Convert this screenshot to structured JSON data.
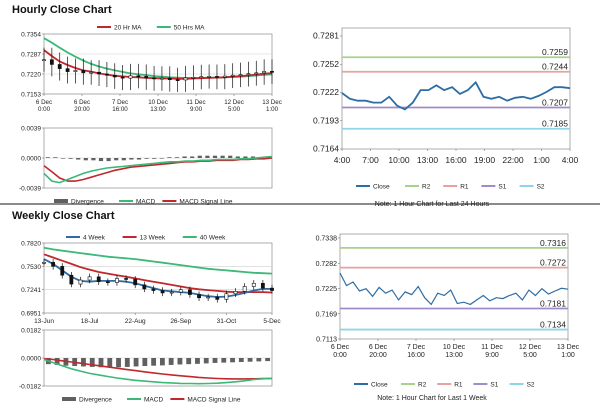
{
  "sections": {
    "hourly_title": "Hourly Close Chart",
    "weekly_title": "Weekly Close Chart"
  },
  "colors": {
    "close": "#2e6da4",
    "ma_red": "#c0282d",
    "ma_green": "#3cb878",
    "r2": "#a9d18e",
    "r1": "#e8a0a0",
    "s1": "#a08cc8",
    "s2": "#8fd4e8",
    "divergence": "#606060",
    "candle": "#111111"
  },
  "chart_data": [
    {
      "id": "hourly_price",
      "type": "line",
      "yticks": [
        "0.7354",
        "0.7287",
        "0.7220",
        "0.7153"
      ],
      "ylim": [
        0.7153,
        0.7354
      ],
      "xticks": [
        "6 Dec\n0:00",
        "6 Dec\n20:00",
        "7 Dec\n16:00",
        "10 Dec\n13:00",
        "11 Dec\n9:00",
        "12 Dec\n5:00",
        "13 Dec\n1:00"
      ],
      "legend": [
        "20 Hr MA",
        "50 Hrs MA"
      ],
      "series": [
        {
          "name": "Close",
          "values": [
            0.7268,
            0.7252,
            0.7238,
            0.7228,
            0.7232,
            0.7224,
            0.7226,
            0.722,
            0.7216,
            0.721,
            0.7206,
            0.7214,
            0.7212,
            0.7207,
            0.7204,
            0.7206,
            0.7201,
            0.72,
            0.7207,
            0.7209,
            0.7211,
            0.7212,
            0.7209,
            0.7213,
            0.7216,
            0.7218,
            0.7221,
            0.7224,
            0.7229,
            0.7227
          ]
        },
        {
          "name": "20 Hr MA",
          "values": [
            0.73,
            0.728,
            0.7262,
            0.725,
            0.724,
            0.7232,
            0.7228,
            0.7222,
            0.7218,
            0.7214,
            0.7212,
            0.721,
            0.7209,
            0.7207,
            0.7206,
            0.7205,
            0.7205,
            0.7204,
            0.7204,
            0.7205,
            0.7206,
            0.7207,
            0.7208,
            0.7209,
            0.7211,
            0.7213,
            0.7215,
            0.7218,
            0.7221,
            0.7223
          ]
        },
        {
          "name": "50 Hrs MA",
          "values": [
            0.734,
            0.7325,
            0.7308,
            0.7292,
            0.7278,
            0.7265,
            0.7254,
            0.7245,
            0.7238,
            0.7232,
            0.7227,
            0.7222,
            0.7219,
            0.7216,
            0.7213,
            0.7211,
            0.7209,
            0.7208,
            0.7207,
            0.7207,
            0.7207,
            0.7208,
            0.7208,
            0.7209,
            0.721,
            0.7211,
            0.7213,
            0.7215,
            0.7217,
            0.7219
          ]
        }
      ]
    },
    {
      "id": "hourly_macd",
      "type": "line",
      "yticks": [
        "0.0039",
        "0.0000",
        "-0.0039"
      ],
      "ylim": [
        -0.0039,
        0.0039
      ],
      "legend": [
        "Divergence",
        "MACD",
        "MACD Signal Line"
      ],
      "series": [
        {
          "name": "Divergence",
          "values": [
            0.0001,
            0.0001,
            0.0,
            -0.0001,
            -0.0002,
            -0.0003,
            -0.0003,
            -0.0004,
            -0.0004,
            -0.0003,
            -0.0003,
            -0.0002,
            -0.0002,
            -0.0001,
            -0.0001,
            0.0,
            0.0001,
            0.0001,
            0.0002,
            0.0002,
            0.0003,
            0.0003,
            0.0003,
            0.0003,
            0.0003,
            0.0002,
            0.0002,
            0.0002,
            0.0001,
            0.0001
          ]
        },
        {
          "name": "MACD",
          "values": [
            -0.002,
            -0.003,
            -0.0032,
            -0.0028,
            -0.0024,
            -0.002,
            -0.0017,
            -0.0015,
            -0.0013,
            -0.0012,
            -0.0011,
            -0.001,
            -0.0009,
            -0.0008,
            -0.0007,
            -0.0006,
            -0.0005,
            -0.0005,
            -0.0004,
            -0.0004,
            -0.0003,
            -0.0003,
            -0.0002,
            -0.0002,
            -0.0002,
            -0.0001,
            -0.0001,
            0.0,
            0.0001,
            0.0002
          ]
        },
        {
          "name": "MACD Signal Line",
          "values": [
            -0.001,
            -0.0018,
            -0.0026,
            -0.003,
            -0.003,
            -0.0028,
            -0.0025,
            -0.0022,
            -0.0019,
            -0.0016,
            -0.0014,
            -0.0012,
            -0.0011,
            -0.001,
            -0.0009,
            -0.0008,
            -0.0007,
            -0.0006,
            -0.0005,
            -0.0005,
            -0.0004,
            -0.0004,
            -0.0003,
            -0.0003,
            -0.0003,
            -0.0002,
            -0.0002,
            -0.0001,
            -0.0001,
            0.0
          ]
        }
      ]
    },
    {
      "id": "last24",
      "type": "line",
      "yticks": [
        "0.7281",
        "0.7252",
        "0.7222",
        "0.7193",
        "0.7164"
      ],
      "ylim": [
        0.7164,
        0.7281
      ],
      "xticks": [
        "4:00",
        "7:00",
        "10:00",
        "13:00",
        "16:00",
        "19:00",
        "22:00",
        "1:00",
        "4:00"
      ],
      "levels": [
        {
          "name": "R2",
          "value": 0.7259,
          "label": "0.7259"
        },
        {
          "name": "R1",
          "value": 0.7244,
          "label": "0.7244"
        },
        {
          "name": "S1",
          "value": 0.7207,
          "label": "0.7207"
        },
        {
          "name": "S2",
          "value": 0.7185,
          "label": "0.7185"
        }
      ],
      "legend": [
        "Close",
        "R2",
        "R1",
        "S1",
        "S2"
      ],
      "note": "Note: 1 Hour Chart for Last 24 Hours",
      "series": [
        {
          "name": "Close",
          "values": [
            0.7222,
            0.7216,
            0.7214,
            0.7214,
            0.7212,
            0.7212,
            0.7218,
            0.7209,
            0.7205,
            0.7212,
            0.7225,
            0.7225,
            0.723,
            0.7225,
            0.7228,
            0.7221,
            0.7225,
            0.7233,
            0.7218,
            0.7216,
            0.7218,
            0.7214,
            0.7217,
            0.7218,
            0.7216,
            0.7219,
            0.7223,
            0.7228,
            0.7228,
            0.7227
          ]
        }
      ]
    },
    {
      "id": "weekly_price",
      "type": "line",
      "yticks": [
        "0.7820",
        "0.7530",
        "0.7241",
        "0.6951"
      ],
      "ylim": [
        0.6951,
        0.782
      ],
      "xticks": [
        "13-Jun",
        "18-Jul",
        "22-Aug",
        "26-Sep",
        "31-Oct",
        "5-Dec"
      ],
      "legend": [
        "4 Week",
        "13 Week",
        "40 Week"
      ],
      "series": [
        {
          "name": "Close",
          "values": [
            0.758,
            0.753,
            0.742,
            0.731,
            0.736,
            0.74,
            0.734,
            0.733,
            0.738,
            0.737,
            0.73,
            0.725,
            0.723,
            0.72,
            0.721,
            0.724,
            0.718,
            0.714,
            0.715,
            0.712,
            0.719,
            0.722,
            0.728,
            0.732,
            0.726,
            0.723
          ]
        },
        {
          "name": "4 Week",
          "values": [
            0.762,
            0.756,
            0.748,
            0.74,
            0.735,
            0.734,
            0.735,
            0.735,
            0.735,
            0.734,
            0.732,
            0.729,
            0.726,
            0.723,
            0.722,
            0.721,
            0.72,
            0.718,
            0.716,
            0.715,
            0.7155,
            0.7175,
            0.72,
            0.723,
            0.725,
            0.725
          ]
        },
        {
          "name": "13 Week",
          "values": [
            0.768,
            0.764,
            0.76,
            0.756,
            0.752,
            0.749,
            0.746,
            0.744,
            0.742,
            0.74,
            0.738,
            0.736,
            0.734,
            0.732,
            0.73,
            0.728,
            0.726,
            0.7245,
            0.7235,
            0.7225,
            0.7215,
            0.721,
            0.721,
            0.721,
            0.721,
            0.7205
          ]
        },
        {
          "name": "40 Week",
          "values": [
            0.776,
            0.774,
            0.7725,
            0.771,
            0.7695,
            0.768,
            0.7665,
            0.765,
            0.764,
            0.763,
            0.762,
            0.7605,
            0.759,
            0.7575,
            0.756,
            0.7545,
            0.753,
            0.7515,
            0.75,
            0.749,
            0.748,
            0.747,
            0.746,
            0.745,
            0.7445,
            0.744
          ]
        }
      ]
    },
    {
      "id": "weekly_macd",
      "type": "line",
      "yticks": [
        "0.0182",
        "0.0000",
        "-0.0182"
      ],
      "ylim": [
        -0.0182,
        0.0182
      ],
      "legend": [
        "Divergence",
        "MACD",
        "MACD Signal Line"
      ],
      "series": [
        {
          "name": "Divergence",
          "values": [
            -0.004,
            -0.0045,
            -0.005,
            -0.0052,
            -0.0055,
            -0.0058,
            -0.006,
            -0.0062,
            -0.006,
            -0.0058,
            -0.0055,
            -0.0052,
            -0.005,
            -0.0048,
            -0.0045,
            -0.0042,
            -0.004,
            -0.0038,
            -0.0035,
            -0.0032,
            -0.003,
            -0.0028,
            -0.0026,
            -0.0024,
            -0.0022,
            -0.002
          ]
        },
        {
          "name": "MACD",
          "values": [
            -0.001,
            -0.003,
            -0.005,
            -0.007,
            -0.0085,
            -0.01,
            -0.011,
            -0.012,
            -0.013,
            -0.0138,
            -0.0145,
            -0.015,
            -0.0155,
            -0.016,
            -0.0162,
            -0.0165,
            -0.0166,
            -0.0167,
            -0.0166,
            -0.0164,
            -0.016,
            -0.0155,
            -0.0148,
            -0.014,
            -0.0135,
            -0.0132
          ]
        },
        {
          "name": "MACD Signal Line",
          "values": [
            -0.0005,
            -0.001,
            -0.0018,
            -0.0026,
            -0.0034,
            -0.0042,
            -0.005,
            -0.0058,
            -0.0066,
            -0.0074,
            -0.0082,
            -0.009,
            -0.0097,
            -0.0104,
            -0.011,
            -0.0116,
            -0.0121,
            -0.0126,
            -0.013,
            -0.0133,
            -0.0135,
            -0.0136,
            -0.0136,
            -0.0135,
            -0.0134,
            -0.0133
          ]
        }
      ]
    },
    {
      "id": "last_week",
      "type": "line",
      "yticks": [
        "0.7338",
        "0.7282",
        "0.7225",
        "0.7169",
        "0.7113"
      ],
      "ylim": [
        0.7113,
        0.7338
      ],
      "xticks": [
        "6 Dec\n0:00",
        "6 Dec\n20:00",
        "7 Dec\n16:00",
        "10 Dec\n13:00",
        "11 Dec\n9:00",
        "12 Dec\n5:00",
        "13 Dec\n1:00"
      ],
      "levels": [
        {
          "name": "R2",
          "value": 0.7316,
          "label": "0.7316"
        },
        {
          "name": "R1",
          "value": 0.7272,
          "label": "0.7272"
        },
        {
          "name": "S1",
          "value": 0.7181,
          "label": "0.7181"
        },
        {
          "name": "S2",
          "value": 0.7134,
          "label": "0.7134"
        }
      ],
      "legend": [
        "Close",
        "R2",
        "R1",
        "S1",
        "S2"
      ],
      "note": "Note: 1 Hour Chart for Last 1 Week",
      "series": [
        {
          "name": "Close",
          "values": [
            0.726,
            0.7232,
            0.724,
            0.722,
            0.7225,
            0.7208,
            0.7228,
            0.7215,
            0.7222,
            0.72,
            0.7218,
            0.7212,
            0.723,
            0.7205,
            0.719,
            0.7215,
            0.721,
            0.7222,
            0.7192,
            0.7195,
            0.719,
            0.72,
            0.721,
            0.7198,
            0.7205,
            0.7203,
            0.721,
            0.7215,
            0.72,
            0.7222,
            0.721,
            0.7225,
            0.7213,
            0.722,
            0.7226,
            0.7224
          ]
        }
      ]
    }
  ]
}
